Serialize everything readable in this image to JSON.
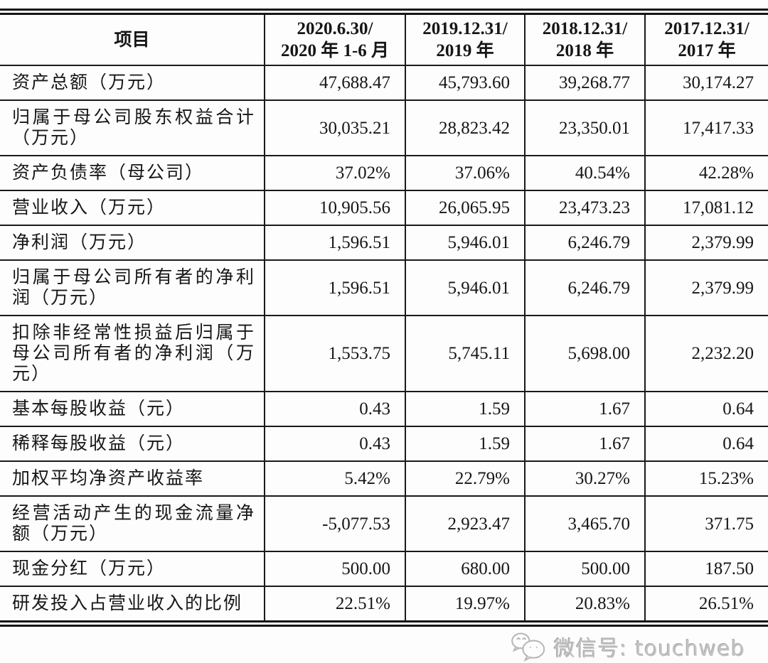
{
  "table": {
    "header": {
      "item_label": "项目",
      "period_columns": [
        {
          "line1": "2020.6.30/",
          "line2": "2020 年 1-6 月"
        },
        {
          "line1": "2019.12.31/",
          "line2": "2019 年"
        },
        {
          "line1": "2018.12.31/",
          "line2": "2018 年"
        },
        {
          "line1": "2017.12.31/",
          "line2": "2017 年"
        }
      ]
    },
    "rows": [
      {
        "label": "资产总额（万元）",
        "values": [
          "47,688.47",
          "45,793.60",
          "39,268.77",
          "30,174.27"
        ]
      },
      {
        "label": "归属于母公司股东权益合计（万元）",
        "values": [
          "30,035.21",
          "28,823.42",
          "23,350.01",
          "17,417.33"
        ]
      },
      {
        "label": "资产负债率（母公司）",
        "values": [
          "37.02%",
          "37.06%",
          "40.54%",
          "42.28%"
        ]
      },
      {
        "label": "营业收入（万元）",
        "values": [
          "10,905.56",
          "26,065.95",
          "23,473.23",
          "17,081.12"
        ]
      },
      {
        "label": "净利润（万元）",
        "values": [
          "1,596.51",
          "5,946.01",
          "6,246.79",
          "2,379.99"
        ]
      },
      {
        "label": "归属于母公司所有者的净利润（万元）",
        "values": [
          "1,596.51",
          "5,946.01",
          "6,246.79",
          "2,379.99"
        ]
      },
      {
        "label": "扣除非经常性损益后归属于母公司所有者的净利润（万元）",
        "values": [
          "1,553.75",
          "5,745.11",
          "5,698.00",
          "2,232.20"
        ]
      },
      {
        "label": "基本每股收益（元）",
        "values": [
          "0.43",
          "1.59",
          "1.67",
          "0.64"
        ]
      },
      {
        "label": "稀释每股收益（元）",
        "values": [
          "0.43",
          "1.59",
          "1.67",
          "0.64"
        ]
      },
      {
        "label": "加权平均净资产收益率",
        "values": [
          "5.42%",
          "22.79%",
          "30.27%",
          "15.23%"
        ]
      },
      {
        "label": "经营活动产生的现金流量净额（万元）",
        "values": [
          "-5,077.53",
          "2,923.47",
          "3,465.70",
          "371.75"
        ]
      },
      {
        "label": "现金分红（万元）",
        "values": [
          "500.00",
          "680.00",
          "500.00",
          "187.50"
        ]
      },
      {
        "label": "研发投入占营业收入的比例",
        "values": [
          "22.51%",
          "19.97%",
          "20.83%",
          "26.51%"
        ]
      }
    ]
  },
  "footer": {
    "wechat_label": "微信号: touchweb",
    "wechat_icon_name": "wechat-icon"
  },
  "colors": {
    "border": "#1a1a1a",
    "text": "#161616",
    "watermark": "#c2c2c2"
  }
}
